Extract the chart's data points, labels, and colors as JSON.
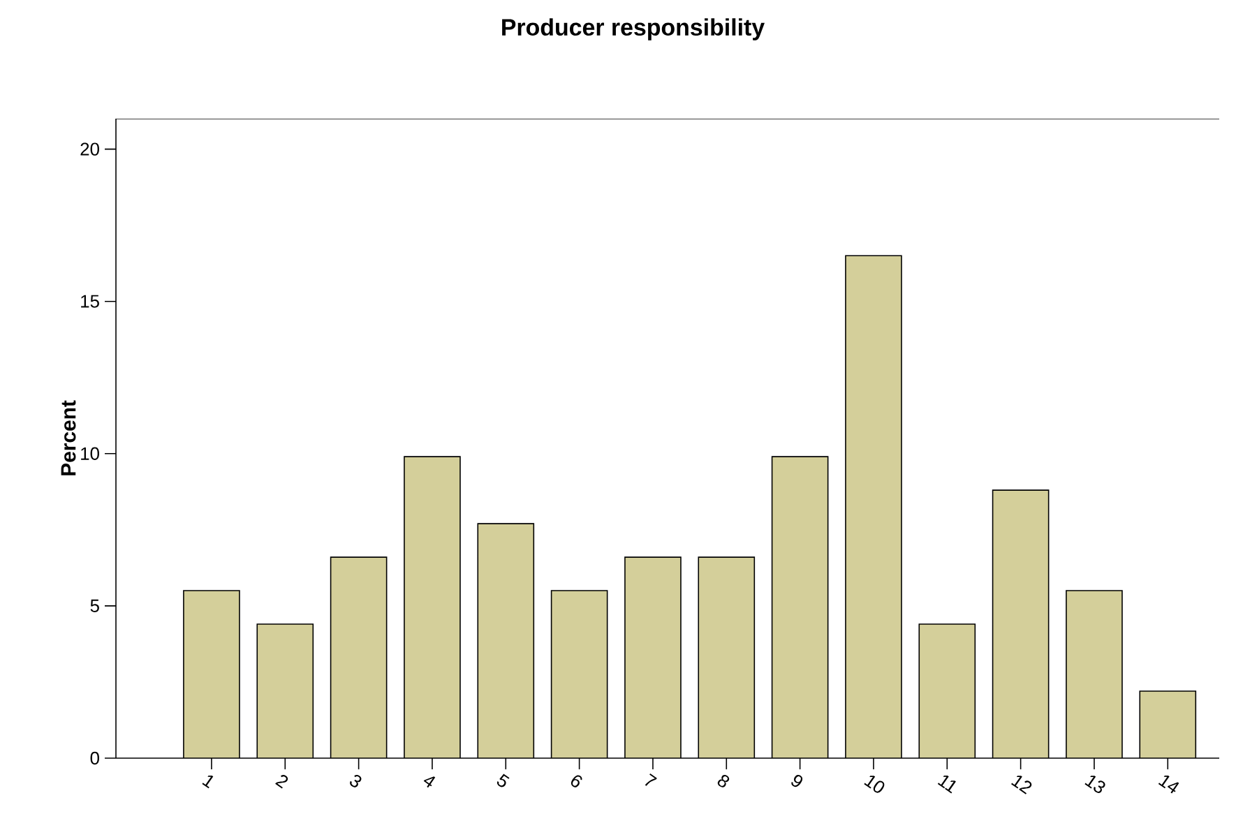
{
  "chart_data": {
    "type": "bar",
    "title": "Producer responsibility",
    "ylabel": "Percent",
    "categories": [
      "1",
      "2",
      "3",
      "4",
      "5",
      "6",
      "7",
      "8",
      "9",
      "10",
      "11",
      "12",
      "13",
      "14"
    ],
    "values": [
      5.5,
      4.4,
      6.6,
      9.9,
      7.7,
      5.5,
      6.6,
      6.6,
      9.9,
      16.5,
      4.4,
      8.8,
      5.5,
      2.2
    ],
    "color": "#d4cf9a",
    "ylim": [
      0,
      21
    ],
    "yticks": [
      0,
      5,
      10,
      15,
      20
    ],
    "grid": false
  }
}
